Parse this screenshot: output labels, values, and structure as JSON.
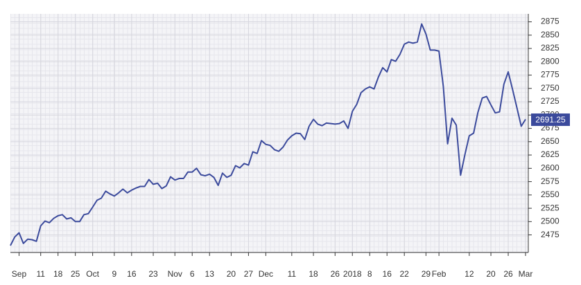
{
  "chart_data": {
    "type": "line",
    "categories": [
      null,
      null,
      "Sep",
      null,
      null,
      null,
      null,
      "11",
      null,
      null,
      null,
      "18",
      null,
      null,
      null,
      "25",
      null,
      null,
      null,
      "Oct",
      null,
      null,
      null,
      null,
      "9",
      null,
      null,
      null,
      "16",
      null,
      null,
      null,
      null,
      "23",
      null,
      null,
      null,
      null,
      "Nov",
      null,
      null,
      null,
      "6",
      null,
      null,
      null,
      "13",
      null,
      null,
      null,
      null,
      "20",
      null,
      null,
      null,
      "27",
      null,
      null,
      null,
      "Dec",
      null,
      null,
      null,
      null,
      null,
      "11",
      null,
      null,
      null,
      null,
      "18",
      null,
      null,
      null,
      null,
      "26",
      null,
      null,
      null,
      "2018",
      null,
      null,
      null,
      "8",
      null,
      null,
      null,
      "16",
      null,
      null,
      null,
      "22",
      null,
      null,
      null,
      null,
      "29",
      null,
      null,
      "Feb",
      null,
      null,
      null,
      null,
      null,
      null,
      "12",
      null,
      null,
      null,
      null,
      "20",
      null,
      null,
      null,
      "26",
      null,
      null,
      null,
      "Mar"
    ],
    "values": [
      2455,
      2471,
      2479,
      2459,
      2467,
      2466,
      2463,
      2492,
      2501,
      2498,
      2506,
      2511,
      2513,
      2505,
      2507,
      2500,
      2500,
      2513,
      2515,
      2527,
      2540,
      2544,
      2557,
      2552,
      2548,
      2554,
      2561,
      2554,
      2559,
      2563,
      2566,
      2566,
      2579,
      2570,
      2572,
      2562,
      2567,
      2584,
      2578,
      2581,
      2581,
      2593,
      2593,
      2600,
      2588,
      2586,
      2589,
      2583,
      2568,
      2591,
      2583,
      2587,
      2605,
      2601,
      2609,
      2606,
      2631,
      2628,
      2652,
      2645,
      2643,
      2635,
      2632,
      2640,
      2653,
      2661,
      2666,
      2665,
      2654,
      2679,
      2692,
      2683,
      2680,
      2685,
      2684,
      2683,
      2684,
      2689,
      2675,
      2707,
      2720,
      2742,
      2749,
      2753,
      2749,
      2771,
      2789,
      2781,
      2804,
      2801,
      2814,
      2833,
      2837,
      2835,
      2837,
      2871,
      2852,
      2822,
      2822,
      2820,
      2754,
      2646,
      2694,
      2681,
      2587,
      2626,
      2661,
      2666,
      2705,
      2732,
      2735,
      2719,
      2704,
      2706,
      2758,
      2781,
      2748,
      2714,
      2679,
      2692
    ],
    "color": "#3b4a9c",
    "last_price": 2691.25,
    "ylim": [
      2442,
      2890
    ],
    "yticks": [
      2475,
      2500,
      2525,
      2550,
      2575,
      2600,
      2625,
      2650,
      2675,
      2700,
      2725,
      2750,
      2775,
      2800,
      2825,
      2850,
      2875
    ],
    "grid": true
  }
}
